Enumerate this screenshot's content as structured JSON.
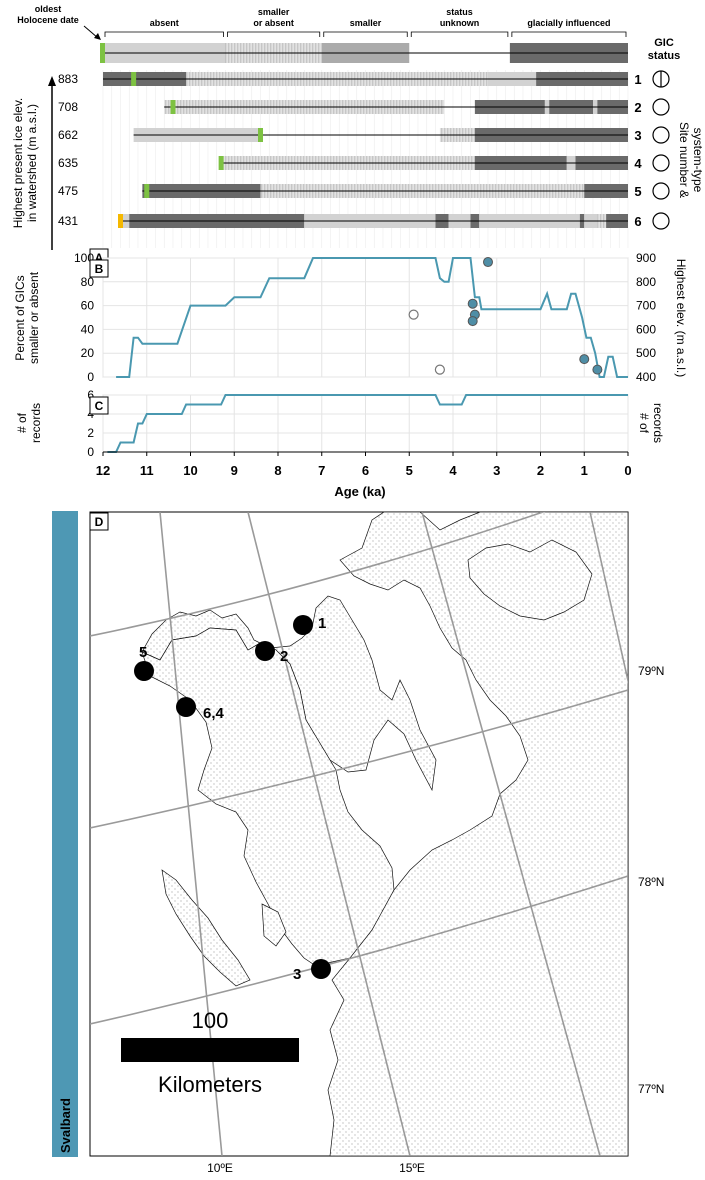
{
  "legend": {
    "oldest_date": [
      "oldest",
      "Holocene date"
    ],
    "categories": [
      {
        "label": [
          "absent"
        ],
        "from": 12,
        "to": 9.2,
        "fill": "light"
      },
      {
        "label": [
          "smaller",
          "or absent"
        ],
        "from": 9.2,
        "to": 7.0,
        "fill": "hatch"
      },
      {
        "label": [
          "smaller"
        ],
        "from": 7.0,
        "to": 5.0,
        "fill": "medium"
      },
      {
        "label": [
          "status",
          "unknown"
        ],
        "from": 5.0,
        "to": 2.7,
        "fill": "line"
      },
      {
        "label": [
          "glacially influenced"
        ],
        "from": 2.7,
        "to": 0,
        "fill": "dark"
      }
    ],
    "gic_status": [
      "GIC",
      "status"
    ]
  },
  "panels": {
    "A": "A",
    "B": "B",
    "C": "C",
    "D": "D"
  },
  "panelA": {
    "ylabel": [
      "Highest present ice elev.",
      "in watershed (m a.s.l.)"
    ],
    "right_label": [
      "Site number &",
      "system-type"
    ],
    "sites": [
      {
        "elev": "883",
        "num": "1",
        "symbol": "circle-line",
        "oldest": 11.3,
        "marker": "#7dc242",
        "segments": [
          [
            12,
            11.3,
            "dark"
          ],
          [
            11.3,
            10.1,
            "dark"
          ],
          [
            10.1,
            7.0,
            "hatch"
          ],
          [
            7.0,
            3.2,
            "hatch"
          ],
          [
            3.2,
            2.1,
            "light"
          ],
          [
            2.1,
            0,
            "dark"
          ]
        ]
      },
      {
        "elev": "708",
        "num": "2",
        "symbol": "circle",
        "oldest": 10.4,
        "marker": "#7dc242",
        "segments": [
          [
            10.6,
            10.4,
            "hatch"
          ],
          [
            10.4,
            4.2,
            "hatch"
          ],
          [
            4.2,
            3.5,
            "line"
          ],
          [
            3.5,
            1.9,
            "dark"
          ],
          [
            1.9,
            1.8,
            "light"
          ],
          [
            1.8,
            0.8,
            "dark"
          ],
          [
            0.8,
            0.7,
            "light"
          ],
          [
            0.7,
            0,
            "dark"
          ]
        ]
      },
      {
        "elev": "662",
        "num": "3",
        "symbol": "circle",
        "oldest": 8.4,
        "marker": "#7dc242",
        "segments": [
          [
            11.3,
            8.4,
            "light"
          ],
          [
            8.4,
            4.3,
            "line"
          ],
          [
            4.3,
            3.5,
            "hatch"
          ],
          [
            3.5,
            0,
            "dark"
          ]
        ]
      },
      {
        "elev": "635",
        "num": "4",
        "symbol": "circle",
        "oldest": 9.3,
        "marker": "#7dc242",
        "segments": [
          [
            9.3,
            3.5,
            "hatch"
          ],
          [
            3.5,
            1.4,
            "dark"
          ],
          [
            1.4,
            1.2,
            "light"
          ],
          [
            1.2,
            0,
            "dark"
          ]
        ]
      },
      {
        "elev": "475",
        "num": "5",
        "symbol": "circle",
        "oldest": 11.0,
        "marker": "#7dc242",
        "segments": [
          [
            11.1,
            11.0,
            "dark"
          ],
          [
            11.0,
            8.4,
            "dark"
          ],
          [
            8.4,
            1.0,
            "hatch"
          ],
          [
            1.0,
            0,
            "dark"
          ]
        ]
      },
      {
        "elev": "431",
        "num": "6",
        "symbol": "circle",
        "oldest": 11.6,
        "marker": "#f5b800",
        "segments": [
          [
            11.6,
            11.4,
            "light"
          ],
          [
            11.4,
            7.4,
            "dark"
          ],
          [
            7.4,
            4.4,
            "light"
          ],
          [
            4.4,
            4.1,
            "dark"
          ],
          [
            4.1,
            3.6,
            "light"
          ],
          [
            3.6,
            3.4,
            "dark"
          ],
          [
            3.4,
            1.1,
            "light"
          ],
          [
            1.1,
            1.0,
            "dark"
          ],
          [
            1.0,
            0.7,
            "light"
          ],
          [
            0.7,
            0.5,
            "hatch"
          ],
          [
            0.5,
            0,
            "dark"
          ]
        ]
      }
    ]
  },
  "chart_data": [
    {
      "panel": "B",
      "type": "line",
      "ylabel": [
        "Percent of GICs",
        "smaller or absent"
      ],
      "y2label": [
        "Highest elev. (m a.s.l.)"
      ],
      "xlim": [
        12,
        0
      ],
      "ylim": [
        0,
        100
      ],
      "y2lim": [
        400,
        900
      ],
      "yticks": [
        "0",
        "20",
        "40",
        "60",
        "80",
        "100"
      ],
      "y2ticks": [
        "400",
        "500",
        "600",
        "700",
        "800",
        "900"
      ],
      "series": [
        {
          "values": [
            [
              11.7,
              0
            ],
            [
              11.4,
              0
            ],
            [
              11.3,
              33
            ],
            [
              11.2,
              33
            ],
            [
              11.1,
              28
            ],
            [
              10.3,
              28
            ],
            [
              10.0,
              60
            ],
            [
              9.2,
              60
            ],
            [
              9.0,
              67
            ],
            [
              8.4,
              67
            ],
            [
              8.2,
              83
            ],
            [
              7.4,
              83
            ],
            [
              7.2,
              100
            ],
            [
              4.4,
              100
            ],
            [
              4.3,
              83
            ],
            [
              4.2,
              80
            ],
            [
              4.1,
              80
            ],
            [
              4.0,
              100
            ],
            [
              3.6,
              100
            ],
            [
              3.5,
              67
            ],
            [
              3.4,
              67
            ],
            [
              3.35,
              57
            ],
            [
              2.0,
              57
            ],
            [
              1.85,
              70
            ],
            [
              1.75,
              57
            ],
            [
              1.4,
              57
            ],
            [
              1.3,
              70
            ],
            [
              1.2,
              70
            ],
            [
              1.05,
              50
            ],
            [
              0.95,
              33
            ],
            [
              0.85,
              33
            ],
            [
              0.75,
              20
            ],
            [
              0.65,
              0
            ],
            [
              0.55,
              0
            ],
            [
              0.45,
              17
            ],
            [
              0.35,
              17
            ],
            [
              0.25,
              0
            ],
            [
              0,
              0
            ]
          ]
        }
      ],
      "points_filled": [
        [
          3.2,
          883
        ],
        [
          3.55,
          708
        ],
        [
          3.5,
          662
        ],
        [
          3.55,
          635
        ],
        [
          1.0,
          475
        ],
        [
          0.7,
          431
        ]
      ],
      "points_open": [
        [
          4.9,
          662
        ],
        [
          4.3,
          431
        ]
      ]
    },
    {
      "panel": "C",
      "type": "line",
      "ylabel": [
        "# of",
        "records"
      ],
      "y2label": [
        "# of",
        "records"
      ],
      "xlabel": "Age (ka)",
      "xlim": [
        12,
        0
      ],
      "ylim": [
        0,
        6
      ],
      "yticks": [
        "0",
        "2",
        "4",
        "6"
      ],
      "xticks": [
        "12",
        "11",
        "10",
        "9",
        "8",
        "7",
        "6",
        "5",
        "4",
        "3",
        "2",
        "1",
        "0"
      ],
      "series": [
        {
          "values": [
            [
              11.9,
              0
            ],
            [
              11.7,
              0
            ],
            [
              11.6,
              1
            ],
            [
              11.3,
              1
            ],
            [
              11.2,
              3
            ],
            [
              11.1,
              3
            ],
            [
              11.0,
              4
            ],
            [
              10.2,
              4
            ],
            [
              10.1,
              5
            ],
            [
              9.3,
              5
            ],
            [
              9.2,
              6
            ],
            [
              4.4,
              6
            ],
            [
              4.3,
              5
            ],
            [
              3.8,
              5
            ],
            [
              3.7,
              6
            ],
            [
              0,
              6
            ]
          ]
        }
      ]
    }
  ],
  "map": {
    "side_label": "Svalbard",
    "lat_labels": [
      "79ºN",
      "78ºN",
      "77ºN"
    ],
    "lon_labels": [
      "10ºE",
      "15ºE"
    ],
    "scale_value": "100",
    "scale_unit": "Kilometers",
    "sites": [
      {
        "label": "1"
      },
      {
        "label": "2"
      },
      {
        "label": "5"
      },
      {
        "label": "6,4"
      },
      {
        "label": "3"
      }
    ]
  },
  "colors": {
    "light": "#d2d2d2",
    "medium": "#ababab",
    "dark": "#6a6a6a",
    "line_series": "#4a98b0",
    "point_fill": "#4f8ea6",
    "sidebar": "#4e98b4",
    "oldest_green": "#7dc242",
    "oldest_yellow": "#f5b800"
  }
}
